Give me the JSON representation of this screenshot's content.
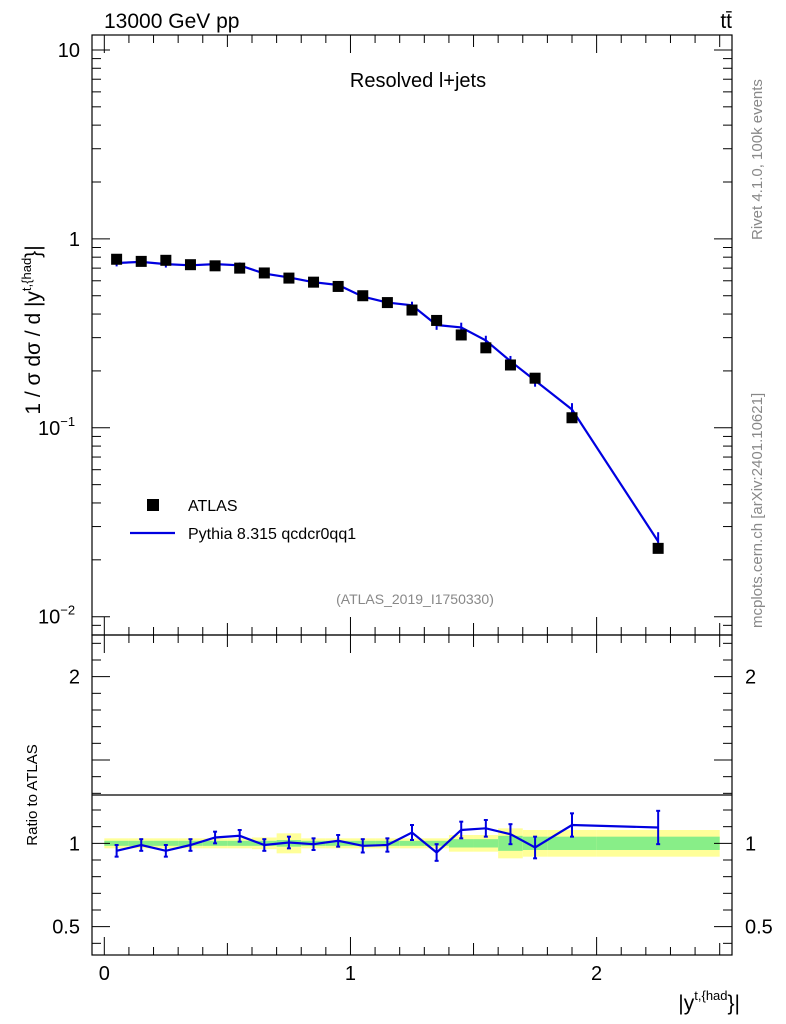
{
  "header": {
    "left": "13000 GeV pp",
    "right": "tt̄"
  },
  "side_labels": {
    "rivet": "Rivet 4.1.0,  100k events",
    "source": "mcplots.cern.ch [arXiv:2401.10621]"
  },
  "colors": {
    "data": "#000000",
    "mc": "#0000e0",
    "band_yellow": "#ffff99",
    "band_green": "#88ee88"
  },
  "chart_data": [
    {
      "type": "line",
      "scale": "log",
      "title": "Resolved l+jets",
      "analysis_id": "(ATLAS_2019_I1750330)",
      "ylabel": "1 / σ dσ / d |y^{t,{had}}|",
      "ylim": [
        0.008,
        12
      ],
      "yticks": [
        {
          "value": 10,
          "label": "10"
        },
        {
          "value": 1,
          "label": "1"
        },
        {
          "value": 0.1,
          "label": "10",
          "exp": "−1"
        },
        {
          "value": 0.01,
          "label": "10",
          "exp": "−2"
        }
      ],
      "xlim": [
        -0.05,
        2.55
      ],
      "legend": {
        "position": "bottom-left",
        "entries": [
          "ATLAS",
          "Pythia 8.315 qcdcr0qq1"
        ]
      },
      "x": [
        0.05,
        0.15,
        0.25,
        0.35,
        0.45,
        0.55,
        0.65,
        0.75,
        0.85,
        0.95,
        1.05,
        1.15,
        1.25,
        1.35,
        1.45,
        1.55,
        1.65,
        1.75,
        1.9,
        2.25
      ],
      "series": [
        {
          "name": "ATLAS",
          "values": [
            0.78,
            0.76,
            0.77,
            0.73,
            0.72,
            0.7,
            0.66,
            0.62,
            0.59,
            0.56,
            0.5,
            0.46,
            0.42,
            0.37,
            0.31,
            0.265,
            0.215,
            0.183,
            0.113,
            0.023
          ]
        },
        {
          "name": "Pythia 8.315 qcdcr0qq1",
          "values": [
            0.745,
            0.755,
            0.735,
            0.725,
            0.735,
            0.725,
            0.655,
            0.625,
            0.59,
            0.57,
            0.495,
            0.46,
            0.445,
            0.35,
            0.34,
            0.29,
            0.225,
            0.178,
            0.125,
            0.025
          ],
          "errors": [
            0.03,
            0.03,
            0.03,
            0.025,
            0.025,
            0.025,
            0.02,
            0.02,
            0.02,
            0.02,
            0.02,
            0.02,
            0.02,
            0.02,
            0.02,
            0.017,
            0.015,
            0.013,
            0.01,
            0.003
          ]
        }
      ]
    },
    {
      "type": "line",
      "scale": "linear",
      "ylabel": "Ratio to ATLAS",
      "xlabel": "|y^{t,{had}}|",
      "ylim": [
        0.33,
        2.25
      ],
      "yticks": [
        {
          "value": 2,
          "label": "2"
        },
        {
          "value": 1,
          "label": "1"
        },
        {
          "value": 0.5,
          "label": "0.5"
        }
      ],
      "xticks": [
        {
          "value": 0,
          "label": "0"
        },
        {
          "value": 1,
          "label": "1"
        },
        {
          "value": 2,
          "label": "2"
        }
      ],
      "xlim": [
        -0.05,
        2.55
      ],
      "bins": [
        {
          "lo": 0.0,
          "hi": 0.1,
          "green": 0.015,
          "yellow": 0.03
        },
        {
          "lo": 0.1,
          "hi": 0.2,
          "green": 0.015,
          "yellow": 0.03
        },
        {
          "lo": 0.2,
          "hi": 0.3,
          "green": 0.015,
          "yellow": 0.03
        },
        {
          "lo": 0.3,
          "hi": 0.4,
          "green": 0.015,
          "yellow": 0.03
        },
        {
          "lo": 0.4,
          "hi": 0.5,
          "green": 0.015,
          "yellow": 0.03
        },
        {
          "lo": 0.5,
          "hi": 0.6,
          "green": 0.015,
          "yellow": 0.03
        },
        {
          "lo": 0.6,
          "hi": 0.7,
          "green": 0.015,
          "yellow": 0.035
        },
        {
          "lo": 0.7,
          "hi": 0.8,
          "green": 0.02,
          "yellow": 0.06
        },
        {
          "lo": 0.8,
          "hi": 0.9,
          "green": 0.015,
          "yellow": 0.03
        },
        {
          "lo": 0.9,
          "hi": 1.0,
          "green": 0.015,
          "yellow": 0.03
        },
        {
          "lo": 1.0,
          "hi": 1.1,
          "green": 0.015,
          "yellow": 0.03
        },
        {
          "lo": 1.1,
          "hi": 1.2,
          "green": 0.015,
          "yellow": 0.03
        },
        {
          "lo": 1.2,
          "hi": 1.3,
          "green": 0.015,
          "yellow": 0.03
        },
        {
          "lo": 1.3,
          "hi": 1.4,
          "green": 0.015,
          "yellow": 0.03
        },
        {
          "lo": 1.4,
          "hi": 1.5,
          "green": 0.025,
          "yellow": 0.05
        },
        {
          "lo": 1.5,
          "hi": 1.6,
          "green": 0.025,
          "yellow": 0.05
        },
        {
          "lo": 1.6,
          "hi": 1.7,
          "green": 0.045,
          "yellow": 0.09
        },
        {
          "lo": 1.7,
          "hi": 1.8,
          "green": 0.04,
          "yellow": 0.08
        },
        {
          "lo": 1.8,
          "hi": 2.0,
          "green": 0.04,
          "yellow": 0.08
        },
        {
          "lo": 2.0,
          "hi": 2.5,
          "green": 0.04,
          "yellow": 0.08
        }
      ],
      "series": [
        {
          "name": "Pythia 8.315 qcdcr0qq1 / ATLAS",
          "x": [
            0.05,
            0.15,
            0.25,
            0.35,
            0.45,
            0.55,
            0.65,
            0.75,
            0.85,
            0.95,
            1.05,
            1.15,
            1.25,
            1.35,
            1.45,
            1.55,
            1.65,
            1.75,
            1.9,
            2.25
          ],
          "values": [
            0.955,
            0.99,
            0.955,
            0.99,
            1.035,
            1.045,
            0.99,
            1.005,
            0.995,
            1.015,
            0.985,
            0.99,
            1.065,
            0.945,
            1.08,
            1.09,
            1.055,
            0.975,
            1.11,
            1.095
          ],
          "errors": [
            0.035,
            0.035,
            0.035,
            0.035,
            0.035,
            0.035,
            0.035,
            0.035,
            0.035,
            0.035,
            0.04,
            0.04,
            0.045,
            0.05,
            0.05,
            0.05,
            0.06,
            0.065,
            0.07,
            0.1
          ]
        }
      ]
    }
  ]
}
